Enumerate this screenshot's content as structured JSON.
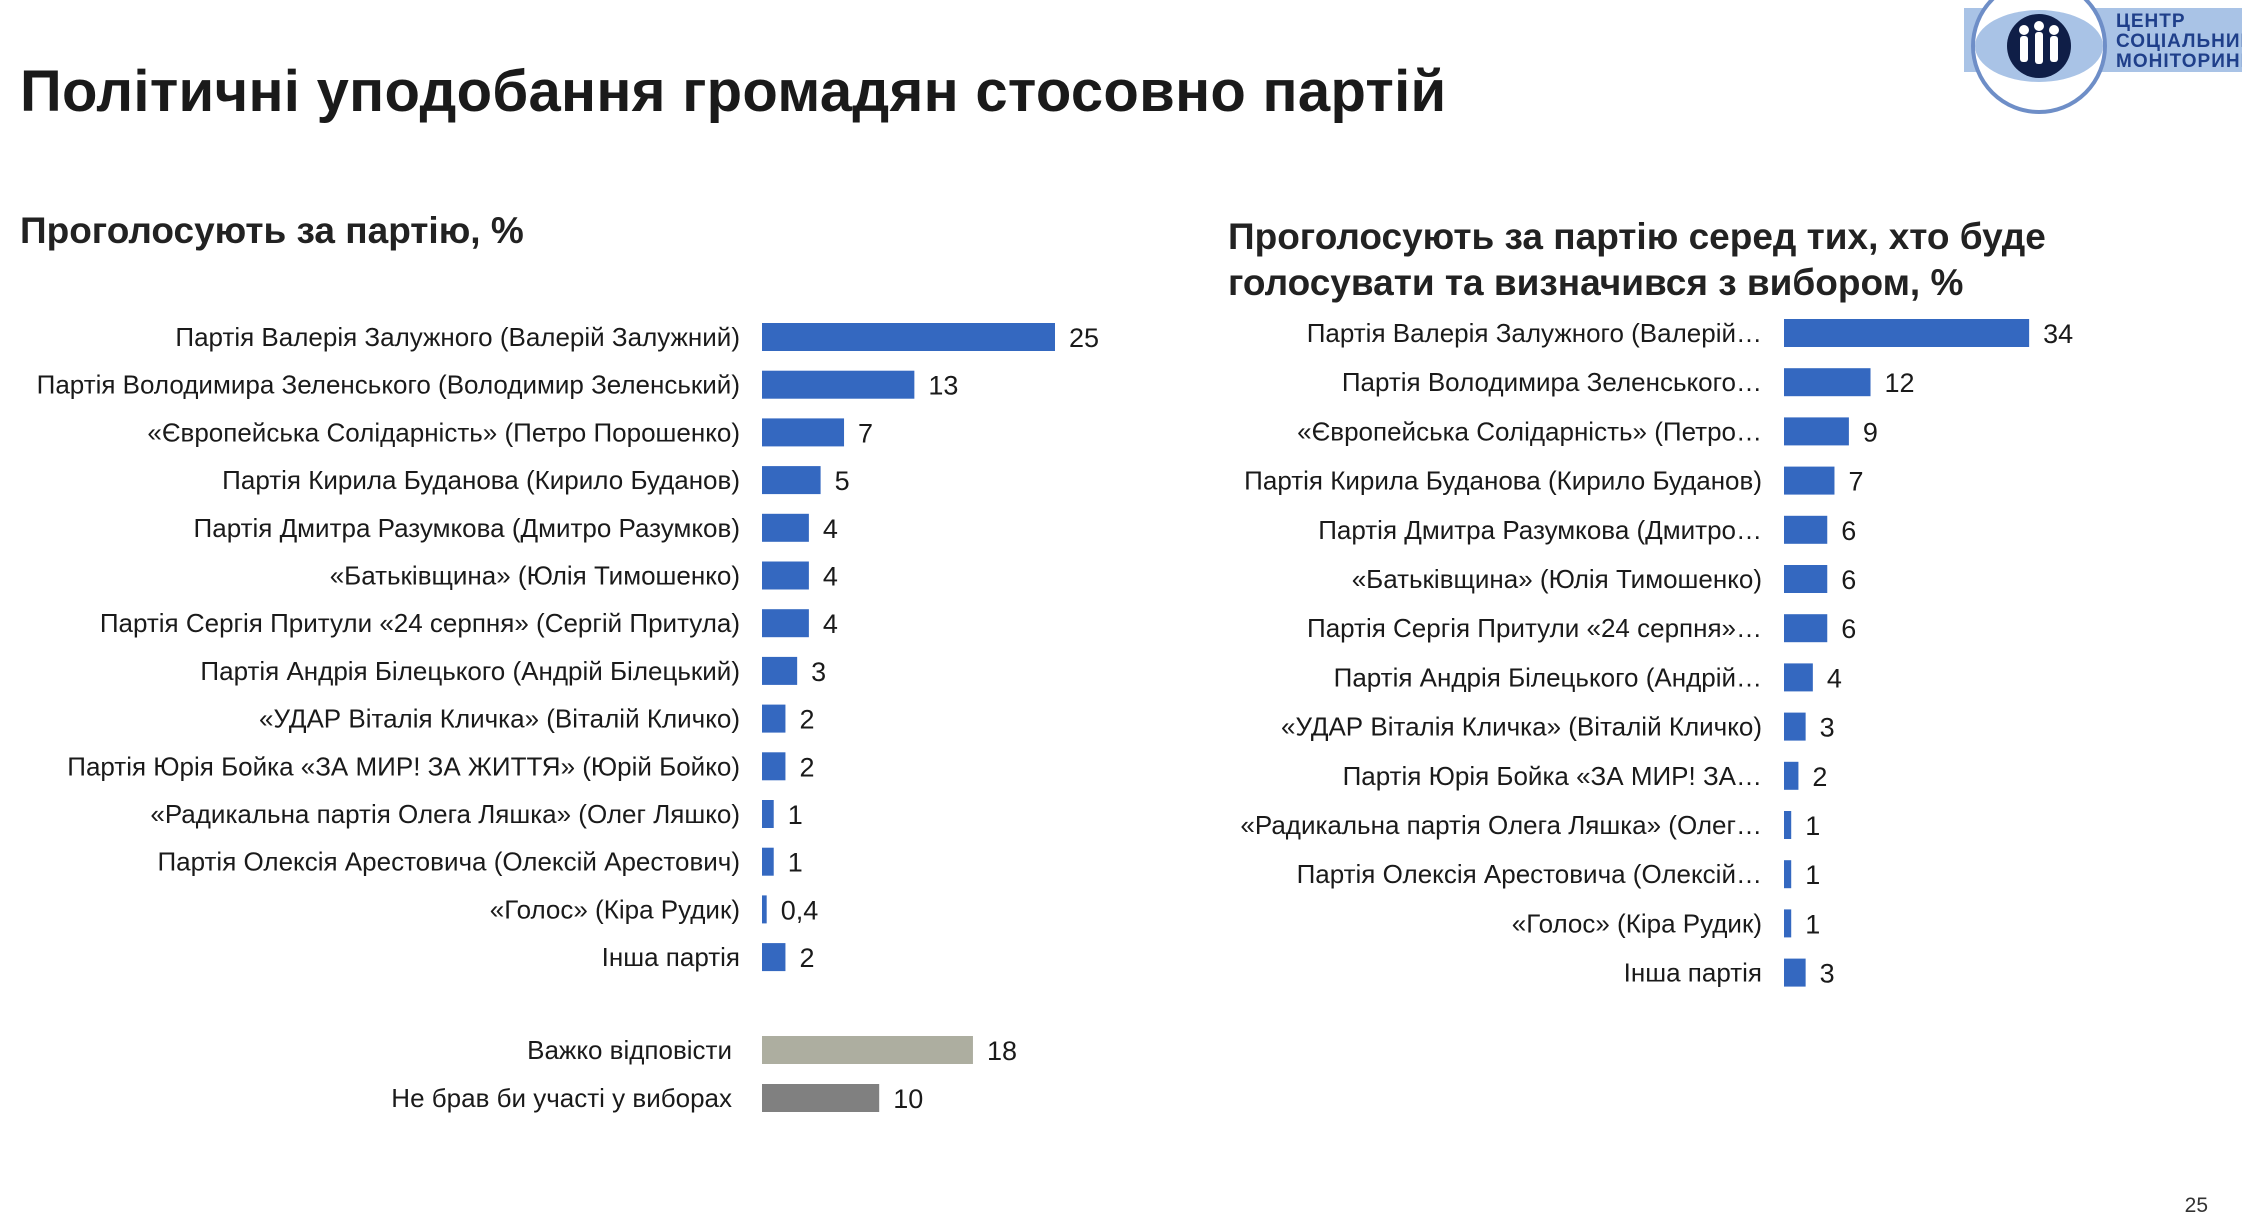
{
  "title": "Політичні уподобання громадян стосовно партій",
  "logo": {
    "line1": "ЦЕНТР",
    "line2": "СОЦІАЛЬНИЙ",
    "line3": "МОНІТОРИНГ"
  },
  "page_number": "25",
  "colors": {
    "primary": "#3468C0",
    "hard_to_say": "#ADAEA0",
    "not_vote": "#808080"
  },
  "chart_data": [
    {
      "type": "bar",
      "orientation": "horizontal",
      "title": "Проголосують за партію, %",
      "categories": [
        "Партія Валерія Залужного (Валерій Залужний)",
        "Партія Володимира Зеленського (Володимир Зеленський)",
        "«Європейська Солідарність» (Петро Порошенко)",
        "Партія Кирила Буданова (Кирило Буданов)",
        "Партія Дмитра Разумкова (Дмитро Разумков)",
        "«Батьківщина» (Юлія Тимошенко)",
        "Партія Сергія Притули «24 серпня» (Сергій Притула)",
        "Партія Андрія Білецького (Андрій Білецький)",
        "«УДАР Віталія Кличка» (Віталій Кличко)",
        "Партія Юрія Бойка «ЗА МИР! ЗА ЖИТТЯ» (Юрій Бойко)",
        "«Радикальна партія Олега Ляшка» (Олег Ляшко)",
        "Партія Олексія Арестовича (Олексій Арестович)",
        "«Голос» (Кіра Рудик)",
        "Інша партія"
      ],
      "values": [
        25,
        13,
        7,
        5,
        4,
        4,
        4,
        3,
        2,
        2,
        1,
        1,
        0.4,
        2
      ],
      "value_labels": [
        "25",
        "13",
        "7",
        "5",
        "4",
        "4",
        "4",
        "3",
        "2",
        "2",
        "1",
        "1",
        "0,4",
        "2"
      ],
      "extra_categories": [
        "Важко відповісти",
        "Не брав би участі у виборах"
      ],
      "extra_values": [
        18,
        10
      ],
      "extra_value_labels": [
        "18",
        "10"
      ]
    },
    {
      "type": "bar",
      "orientation": "horizontal",
      "title": "Проголосують за партію серед тих, хто буде голосувати та визначився з вибором, %",
      "categories": [
        "Партія Валерія Залужного (Валерій…",
        "Партія Володимира Зеленського…",
        "«Європейська Солідарність» (Петро…",
        "Партія Кирила Буданова (Кирило Буданов)",
        "Партія Дмитра Разумкова (Дмитро…",
        "«Батьківщина» (Юлія Тимошенко)",
        "Партія Сергія Притули «24 серпня»…",
        "Партія Андрія Білецького (Андрій…",
        "«УДАР Віталія Кличка» (Віталій Кличко)",
        "Партія Юрія Бойка «ЗА МИР! ЗА…",
        "«Радикальна партія Олега Ляшка» (Олег…",
        "Партія Олексія Арестовича (Олексій…",
        "«Голос» (Кіра Рудик)",
        "Інша партія"
      ],
      "values": [
        34,
        12,
        9,
        7,
        6,
        6,
        6,
        4,
        3,
        2,
        1,
        1,
        1,
        3
      ],
      "value_labels": [
        "34",
        "12",
        "9",
        "7",
        "6",
        "6",
        "6",
        "4",
        "3",
        "2",
        "1",
        "1",
        "1",
        "3"
      ]
    }
  ]
}
